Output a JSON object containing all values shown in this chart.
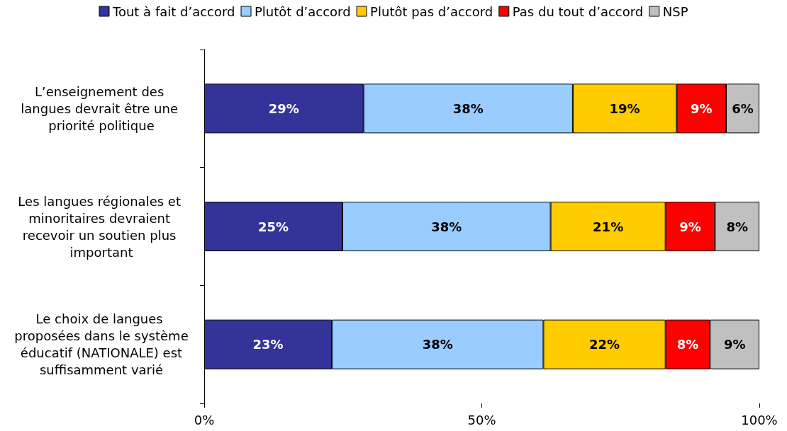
{
  "chart_data": {
    "type": "bar",
    "orientation": "horizontal",
    "stacked": true,
    "categories": [
      "L’enseignement des langues devrait être une priorité politique",
      "Les langues régionales et minoritaires devraient recevoir un soutien plus important",
      "Le choix de langues proposées dans le système éducatif (NATIONALE) est suffisamment varié"
    ],
    "series": [
      {
        "name": "Tout à fait d’accord",
        "color": "#333399",
        "values": [
          28.7,
          24.9,
          23
        ],
        "value_labels": [
          "29%",
          "25%",
          "23%"
        ]
      },
      {
        "name": "Plutôt d’accord",
        "color": "#99ccff",
        "values": [
          37.7,
          37.5,
          38.1
        ],
        "value_labels": [
          "38%",
          "38%",
          "38%"
        ]
      },
      {
        "name": "Plutôt pas d’accord",
        "color": "#ffcc00",
        "values": [
          18.7,
          20.7,
          22
        ],
        "value_labels": [
          "19%",
          "21%",
          "22%"
        ]
      },
      {
        "name": "Pas du tout d’accord",
        "color": "#ff0000",
        "values": [
          8.9,
          8.9,
          8
        ],
        "value_labels": [
          "9%",
          "9%",
          "8%"
        ]
      },
      {
        "name": "NSP",
        "color": "#c0c0c0",
        "values": [
          6,
          8,
          8.9
        ],
        "value_labels": [
          "6%",
          "8%",
          "9%"
        ]
      }
    ],
    "xlim": [
      0,
      100
    ],
    "xticks": [
      {
        "value": 0,
        "label": "0%"
      },
      {
        "value": 50,
        "label": "50%"
      },
      {
        "value": 100,
        "label": "100%"
      }
    ],
    "legend": "top",
    "grid": false
  }
}
